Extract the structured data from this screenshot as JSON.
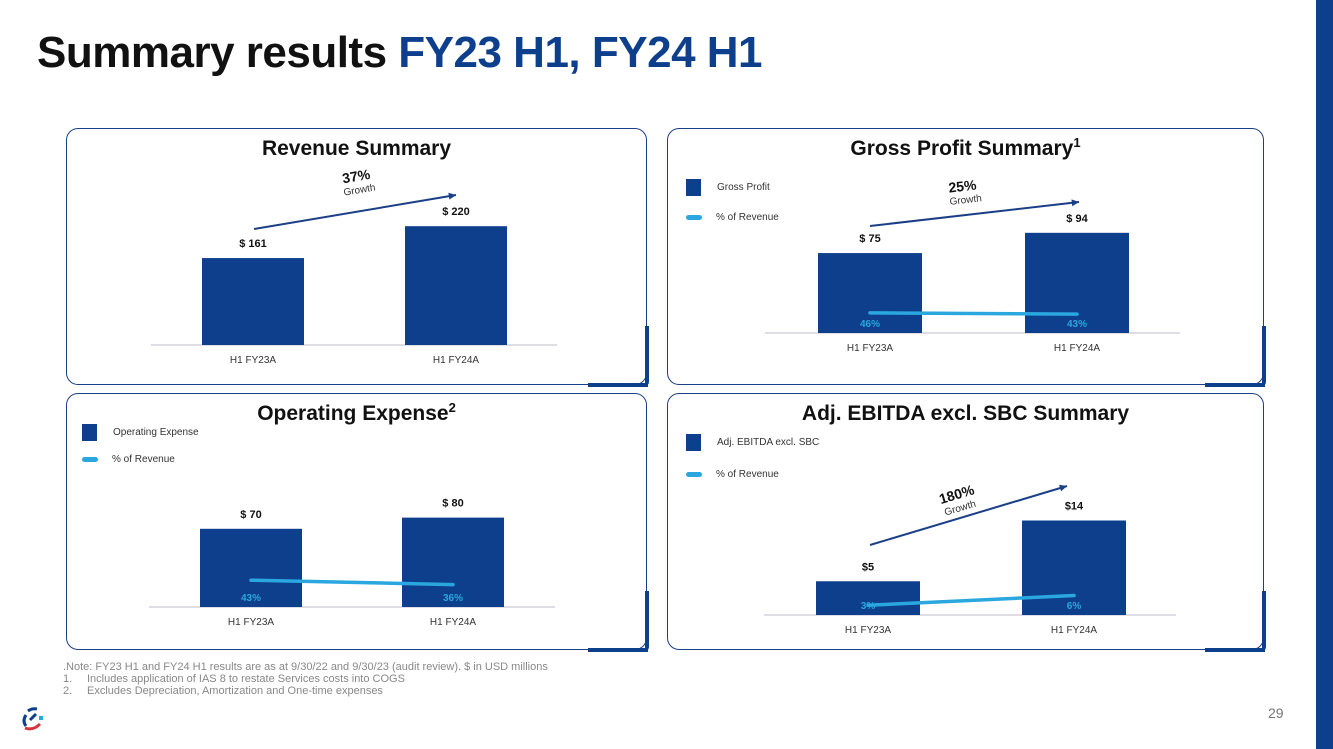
{
  "title": {
    "main": "Summary results ",
    "highlight": "FY23 H1, FY24 H1"
  },
  "page_number": "29",
  "notes": {
    "note": ".Note: FY23 H1 and FY24 H1 results are as at 9/30/22 and 9/30/23 (audit review). $ in USD millions",
    "items": [
      {
        "num": "1.",
        "text": "Includes application of IAS 8 to restate Services costs into COGS"
      },
      {
        "num": "2.",
        "text": "Excludes Depreciation, Amortization and One-time expenses"
      }
    ]
  },
  "colors": {
    "bar": "#0d3f8c",
    "line": "#2aa7de",
    "arrow": "#1b3f86"
  },
  "chart_data": [
    {
      "type": "bar",
      "title": "Revenue Summary",
      "sup": "",
      "categories": [
        "H1 FY23A",
        "H1 FY24A"
      ],
      "values": [
        161,
        220
      ],
      "value_labels": [
        "$ 161",
        "$ 220"
      ],
      "ylim": [
        0,
        300
      ],
      "growth": {
        "value": "37%",
        "label": "Growth"
      },
      "legend": null,
      "pct": null
    },
    {
      "type": "bar",
      "title": "Gross Profit Summary",
      "sup": "1",
      "categories": [
        "H1 FY23A",
        "H1 FY24A"
      ],
      "values": [
        75,
        94
      ],
      "value_labels": [
        "$ 75",
        "$ 94"
      ],
      "ylim": [
        0,
        152
      ],
      "growth": {
        "value": "25%",
        "label": "Growth"
      },
      "legend": {
        "bar": "Gross Profit",
        "line": "% of Revenue"
      },
      "pct": {
        "values": [
          46,
          43
        ],
        "labels": [
          "46%",
          "43%"
        ],
        "ylim": [
          0,
          370
        ]
      }
    },
    {
      "type": "bar",
      "title": "Operating Expense",
      "sup": "2",
      "categories": [
        "H1 FY23A",
        "H1 FY24A"
      ],
      "values": [
        70,
        80
      ],
      "value_labels": [
        "$ 70",
        "$ 80"
      ],
      "ylim": [
        0,
        145
      ],
      "growth": null,
      "legend": {
        "bar": "Operating Expense",
        "line": "% of Revenue"
      },
      "pct": {
        "values": [
          43,
          36
        ],
        "labels": [
          "43%",
          "36%"
        ],
        "ylim": [
          0,
          260
        ]
      }
    },
    {
      "type": "bar",
      "title": "Adj. EBITDA excl. SBC Summary",
      "sup": "",
      "categories": [
        "H1 FY23A",
        "H1 FY24A"
      ],
      "values": [
        5,
        14
      ],
      "value_labels": [
        "$5",
        "$14"
      ],
      "ylim": [
        0,
        24
      ],
      "growth": {
        "value": "180%",
        "label": "Growth"
      },
      "legend": {
        "bar": "Adj. EBITDA excl. SBC",
        "line": "% of Revenue"
      },
      "pct": {
        "values": [
          3,
          6
        ],
        "labels": [
          "3%",
          "6%"
        ],
        "ylim": [
          0,
          50
        ]
      }
    }
  ]
}
